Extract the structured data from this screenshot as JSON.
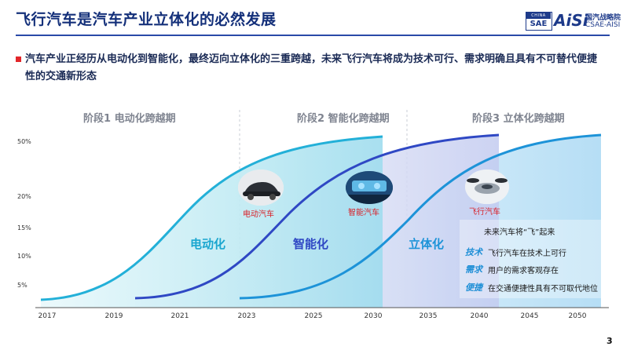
{
  "header": {
    "title": "飞行汽车是汽车产业立体化的必然发展",
    "logo": {
      "china": "CHINA",
      "sae": "SAE",
      "aisi": "AiSi",
      "name_cn": "国汽战略院",
      "name_en": "CSAE-AISI"
    }
  },
  "lead_text": "汽车产业正经历从电动化到智能化，最终迈向立体化的三重跨越，未来飞行汽车将成为技术可行、需求明确且具有不可替代便捷性的交通新形态",
  "chart_data": {
    "type": "area",
    "stages": [
      "阶段1 电动化跨越期",
      "阶段2 智能化跨越期",
      "阶段3 立体化跨越期"
    ],
    "x_ticks": [
      "2017",
      "2019",
      "2021",
      "2023",
      "2025",
      "2030",
      "2035",
      "2040",
      "2045",
      "2050"
    ],
    "y_ticks": [
      "5%",
      "10%",
      "15%",
      "20%",
      "50%"
    ],
    "series": [
      {
        "name": "电动化",
        "color": "#23b0d8"
      },
      {
        "name": "智能化",
        "color": "#2f48c4"
      },
      {
        "name": "立体化",
        "color": "#1d93d8"
      }
    ],
    "vehicles": [
      "电动汽车",
      "智能汽车",
      "飞行汽车"
    ]
  },
  "annotations": {
    "headline": "未来汽车将“飞”起来",
    "items": [
      {
        "key": "技术",
        "text": "飞行汽车在技术上可行"
      },
      {
        "key": "需求",
        "text": "用户的需求客观存在"
      },
      {
        "key": "便捷",
        "text": "在交通便捷性具有不可取代地位"
      }
    ]
  },
  "page_number": "3",
  "colors": {
    "title": "#14307a",
    "accent_red": "#e2262a",
    "key_blue": "#1f8fd6"
  }
}
